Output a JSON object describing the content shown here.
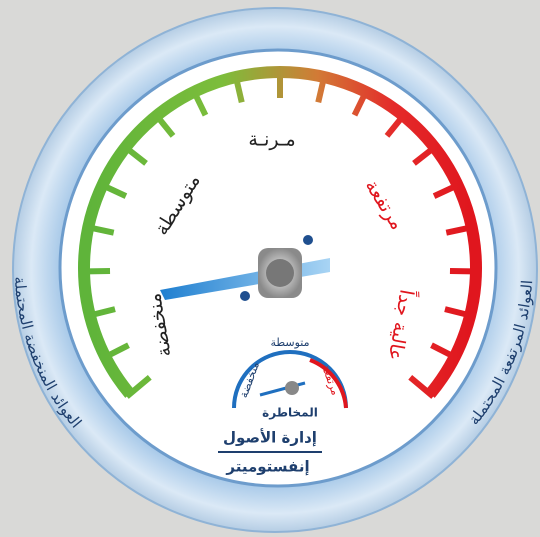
{
  "gauge": {
    "labels": {
      "top": "مـرنـة",
      "upper_left": "متوسطة",
      "upper_right": "مرتفعة",
      "lower_left": "منخفضة",
      "lower_right": "عالية جداً"
    },
    "outer_ring": {
      "left": "العوائد المنخفضة المحتملة",
      "right": "العوائد المرتفعة المحتملة"
    },
    "badge": {
      "top": "متوسطة",
      "left": "منخفضة",
      "right": "مرتفعة",
      "center": "المخاطرة",
      "title": "إدارة الأصول",
      "brand": "إنفستوميتر"
    }
  }
}
